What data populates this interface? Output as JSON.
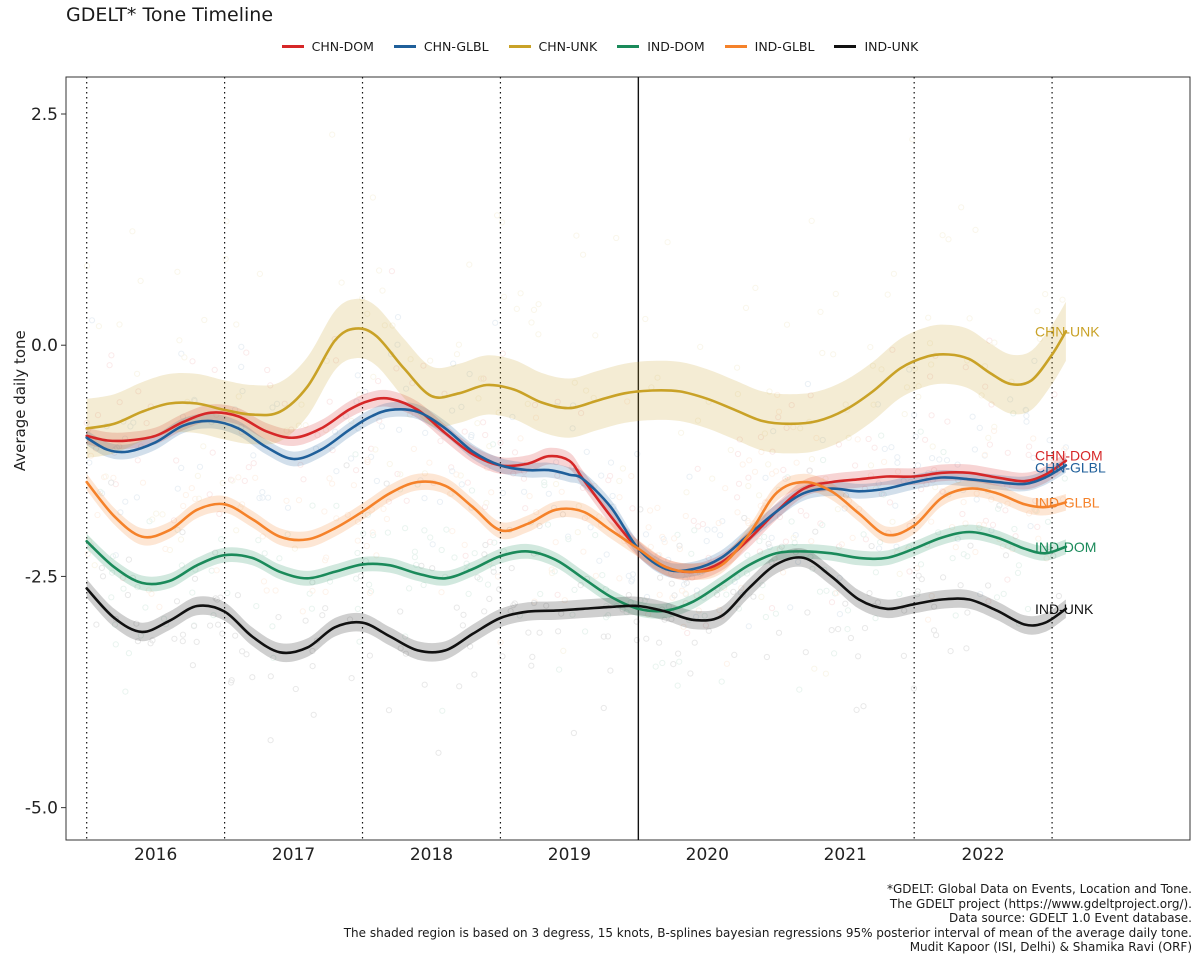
{
  "chart_data": {
    "type": "line",
    "title": "GDELT* Tone Timeline",
    "xlabel": "",
    "ylabel": "Average daily tone",
    "x_ticks": [
      "2016",
      "2017",
      "2018",
      "2019",
      "2020",
      "2021",
      "2022"
    ],
    "y_ticks": [
      "2.5",
      "0.0",
      "-2.5",
      "-5.0"
    ],
    "ylim": [
      -5.35,
      2.9
    ],
    "xlim": [
      2015.35,
      2023.5
    ],
    "legend_position": "top",
    "grid": false,
    "reference_lines": {
      "dotted_x": [
        2015.5,
        2016.5,
        2017.5,
        2018.5,
        2021.5,
        2022.5
      ],
      "solid_x": [
        2019.5
      ]
    },
    "series": [
      {
        "name": "CHN-DOM",
        "color": "#d62728",
        "band": 0.09,
        "x": [
          2015.5,
          2015.65,
          2015.8,
          2016.0,
          2016.2,
          2016.4,
          2016.6,
          2016.8,
          2017.0,
          2017.2,
          2017.4,
          2017.55,
          2017.7,
          2017.9,
          2018.1,
          2018.3,
          2018.5,
          2018.7,
          2018.85,
          2019.0,
          2019.1,
          2019.3,
          2019.5,
          2019.7,
          2019.9,
          2020.1,
          2020.3,
          2020.5,
          2020.7,
          2020.9,
          2021.1,
          2021.3,
          2021.5,
          2021.7,
          2021.9,
          2022.1,
          2022.3,
          2022.45,
          2022.6
        ],
        "y": [
          -0.98,
          -1.03,
          -1.03,
          -0.98,
          -0.83,
          -0.73,
          -0.77,
          -0.93,
          -1.0,
          -0.9,
          -0.7,
          -0.6,
          -0.58,
          -0.7,
          -0.95,
          -1.18,
          -1.3,
          -1.28,
          -1.2,
          -1.25,
          -1.45,
          -1.85,
          -2.2,
          -2.4,
          -2.45,
          -2.35,
          -2.1,
          -1.8,
          -1.55,
          -1.48,
          -1.45,
          -1.42,
          -1.42,
          -1.38,
          -1.38,
          -1.43,
          -1.47,
          -1.4,
          -1.25
        ]
      },
      {
        "name": "CHN-GLBL",
        "color": "#1f5f9a",
        "band": 0.08,
        "x": [
          2015.5,
          2015.65,
          2015.8,
          2016.0,
          2016.2,
          2016.4,
          2016.6,
          2016.8,
          2017.0,
          2017.2,
          2017.4,
          2017.55,
          2017.7,
          2017.9,
          2018.1,
          2018.3,
          2018.5,
          2018.7,
          2018.85,
          2019.0,
          2019.1,
          2019.3,
          2019.5,
          2019.7,
          2019.9,
          2020.1,
          2020.3,
          2020.5,
          2020.7,
          2020.9,
          2021.1,
          2021.3,
          2021.5,
          2021.7,
          2021.9,
          2022.1,
          2022.3,
          2022.45,
          2022.6
        ],
        "y": [
          -1.0,
          -1.13,
          -1.15,
          -1.05,
          -0.87,
          -0.82,
          -0.9,
          -1.1,
          -1.23,
          -1.13,
          -0.92,
          -0.78,
          -0.7,
          -0.72,
          -0.9,
          -1.15,
          -1.3,
          -1.35,
          -1.35,
          -1.4,
          -1.45,
          -1.75,
          -2.2,
          -2.42,
          -2.42,
          -2.3,
          -2.05,
          -1.8,
          -1.6,
          -1.55,
          -1.58,
          -1.55,
          -1.48,
          -1.43,
          -1.45,
          -1.48,
          -1.5,
          -1.43,
          -1.3
        ]
      },
      {
        "name": "CHN-UNK",
        "color": "#c9a227",
        "band": 0.32,
        "x": [
          2015.5,
          2015.7,
          2015.9,
          2016.1,
          2016.3,
          2016.5,
          2016.7,
          2016.9,
          2017.1,
          2017.3,
          2017.45,
          2017.6,
          2017.8,
          2018.0,
          2018.2,
          2018.4,
          2018.6,
          2018.8,
          2019.0,
          2019.2,
          2019.4,
          2019.6,
          2019.8,
          2020.0,
          2020.2,
          2020.4,
          2020.6,
          2020.8,
          2021.0,
          2021.2,
          2021.4,
          2021.6,
          2021.75,
          2021.9,
          2022.05,
          2022.2,
          2022.35,
          2022.5,
          2022.6
        ],
        "y": [
          -0.9,
          -0.85,
          -0.72,
          -0.63,
          -0.63,
          -0.7,
          -0.75,
          -0.72,
          -0.45,
          0.05,
          0.18,
          0.1,
          -0.25,
          -0.55,
          -0.52,
          -0.43,
          -0.48,
          -0.62,
          -0.68,
          -0.6,
          -0.52,
          -0.49,
          -0.5,
          -0.58,
          -0.7,
          -0.82,
          -0.85,
          -0.82,
          -0.7,
          -0.5,
          -0.25,
          -0.12,
          -0.1,
          -0.15,
          -0.3,
          -0.42,
          -0.38,
          -0.1,
          0.15
        ]
      },
      {
        "name": "IND-DOM",
        "color": "#1a8a5a",
        "band": 0.08,
        "x": [
          2015.5,
          2015.7,
          2015.9,
          2016.1,
          2016.3,
          2016.5,
          2016.7,
          2016.9,
          2017.1,
          2017.3,
          2017.5,
          2017.7,
          2017.9,
          2018.1,
          2018.3,
          2018.5,
          2018.7,
          2018.9,
          2019.1,
          2019.3,
          2019.5,
          2019.7,
          2019.9,
          2020.1,
          2020.3,
          2020.5,
          2020.7,
          2020.9,
          2021.1,
          2021.3,
          2021.5,
          2021.7,
          2021.9,
          2022.1,
          2022.3,
          2022.45,
          2022.6
        ],
        "y": [
          -2.12,
          -2.4,
          -2.57,
          -2.55,
          -2.38,
          -2.27,
          -2.3,
          -2.45,
          -2.52,
          -2.45,
          -2.37,
          -2.38,
          -2.47,
          -2.52,
          -2.42,
          -2.28,
          -2.23,
          -2.32,
          -2.52,
          -2.72,
          -2.85,
          -2.87,
          -2.77,
          -2.58,
          -2.38,
          -2.25,
          -2.23,
          -2.25,
          -2.3,
          -2.3,
          -2.2,
          -2.08,
          -2.02,
          -2.08,
          -2.2,
          -2.25,
          -2.18
        ]
      },
      {
        "name": "IND-GLBL",
        "color": "#f5822a",
        "band": 0.09,
        "x": [
          2015.5,
          2015.7,
          2015.9,
          2016.1,
          2016.3,
          2016.5,
          2016.7,
          2016.9,
          2017.1,
          2017.3,
          2017.5,
          2017.7,
          2017.9,
          2018.1,
          2018.3,
          2018.5,
          2018.7,
          2018.9,
          2019.1,
          2019.3,
          2019.5,
          2019.7,
          2019.9,
          2020.1,
          2020.3,
          2020.5,
          2020.7,
          2020.9,
          2021.1,
          2021.3,
          2021.5,
          2021.7,
          2021.9,
          2022.1,
          2022.3,
          2022.45,
          2022.6
        ],
        "y": [
          -1.48,
          -1.85,
          -2.07,
          -2.0,
          -1.78,
          -1.72,
          -1.88,
          -2.07,
          -2.1,
          -1.98,
          -1.8,
          -1.6,
          -1.48,
          -1.52,
          -1.75,
          -2.0,
          -1.93,
          -1.78,
          -1.8,
          -2.0,
          -2.2,
          -2.4,
          -2.45,
          -2.38,
          -2.05,
          -1.6,
          -1.48,
          -1.58,
          -1.82,
          -2.05,
          -1.95,
          -1.65,
          -1.55,
          -1.6,
          -1.72,
          -1.75,
          -1.7
        ]
      },
      {
        "name": "IND-UNK",
        "color": "#111111",
        "band": 0.1,
        "x": [
          2015.5,
          2015.7,
          2015.9,
          2016.1,
          2016.3,
          2016.5,
          2016.7,
          2016.9,
          2017.1,
          2017.3,
          2017.5,
          2017.7,
          2017.9,
          2018.1,
          2018.3,
          2018.5,
          2018.7,
          2018.9,
          2019.1,
          2019.3,
          2019.5,
          2019.7,
          2019.9,
          2020.1,
          2020.3,
          2020.5,
          2020.7,
          2020.9,
          2021.1,
          2021.3,
          2021.5,
          2021.7,
          2021.9,
          2022.1,
          2022.3,
          2022.45,
          2022.6
        ],
        "y": [
          -2.63,
          -2.95,
          -3.1,
          -2.98,
          -2.82,
          -2.88,
          -3.15,
          -3.32,
          -3.27,
          -3.05,
          -3.0,
          -3.15,
          -3.3,
          -3.3,
          -3.12,
          -2.95,
          -2.88,
          -2.87,
          -2.85,
          -2.83,
          -2.82,
          -2.88,
          -2.97,
          -2.93,
          -2.63,
          -2.37,
          -2.3,
          -2.5,
          -2.75,
          -2.85,
          -2.8,
          -2.75,
          -2.75,
          -2.87,
          -3.02,
          -3.0,
          -2.85
        ]
      }
    ],
    "end_labels": [
      {
        "series": "CHN-UNK",
        "text": "CHN-UNK",
        "y": 0.15
      },
      {
        "series": "CHN-DOM",
        "text": "CHN-DOM",
        "y": -1.19
      },
      {
        "series": "CHN-GLBL",
        "text": "CHN-GLBL",
        "y": -1.32
      },
      {
        "series": "IND-GLBL",
        "text": "IND-GLBL",
        "y": -1.7
      },
      {
        "series": "IND-DOM",
        "text": "IND-DOM",
        "y": -2.18
      },
      {
        "series": "IND-UNK",
        "text": "IND-UNK",
        "y": -2.85
      }
    ]
  },
  "caption_lines": [
    "*GDELT: Global Data on Events, Location and Tone.",
    "The GDELT project (https://www.gdeltproject.org/).",
    "Data source: GDELT 1.0 Event database.",
    "The shaded region is based on 3 degress, 15 knots, B-splines bayesian regressions 95% posterior interval of mean of the average daily tone.",
    "Mudit Kapoor (ISI, Delhi) & Shamika Ravi (ORF)"
  ]
}
